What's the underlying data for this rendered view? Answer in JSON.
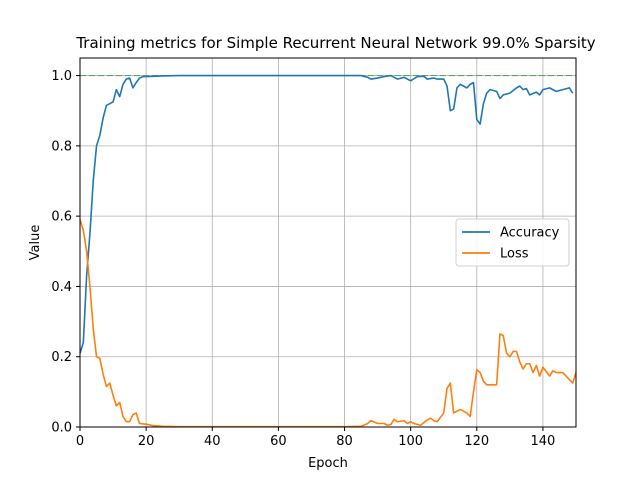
{
  "chart_data": {
    "type": "line",
    "title": "Training metrics for Simple Recurrent Neural Network 99.0% Sparsity",
    "xlabel": "Epoch",
    "ylabel": "Value",
    "xlim": [
      0,
      150
    ],
    "ylim": [
      0,
      1.05
    ],
    "xticks": [
      0,
      20,
      40,
      60,
      80,
      100,
      120,
      140
    ],
    "yticks": [
      0.0,
      0.2,
      0.4,
      0.6,
      0.8,
      1.0
    ],
    "xtick_labels": [
      "0",
      "20",
      "40",
      "60",
      "80",
      "100",
      "120",
      "140"
    ],
    "ytick_labels": [
      "0.0",
      "0.2",
      "0.4",
      "0.6",
      "0.8",
      "1.0"
    ],
    "grid": true,
    "legend_position": "center-right",
    "reference_line": {
      "y": 1.0,
      "style": "dashed",
      "color": "#2ca02c"
    },
    "series": [
      {
        "name": "Accuracy",
        "color": "#1f77b4",
        "points": [
          [
            0,
            0.21
          ],
          [
            1,
            0.24
          ],
          [
            2,
            0.43
          ],
          [
            3,
            0.55
          ],
          [
            4,
            0.7
          ],
          [
            5,
            0.8
          ],
          [
            6,
            0.83
          ],
          [
            7,
            0.88
          ],
          [
            8,
            0.915
          ],
          [
            9,
            0.92
          ],
          [
            10,
            0.925
          ],
          [
            11,
            0.96
          ],
          [
            12,
            0.94
          ],
          [
            13,
            0.975
          ],
          [
            14,
            0.99
          ],
          [
            15,
            0.993
          ],
          [
            16,
            0.965
          ],
          [
            17,
            0.98
          ],
          [
            18,
            0.993
          ],
          [
            19,
            0.997
          ],
          [
            20,
            0.997
          ],
          [
            25,
            0.999
          ],
          [
            30,
            1.0
          ],
          [
            40,
            1.0
          ],
          [
            50,
            1.0
          ],
          [
            60,
            1.0
          ],
          [
            70,
            1.0
          ],
          [
            80,
            1.0
          ],
          [
            85,
            1.0
          ],
          [
            87,
            0.995
          ],
          [
            88,
            0.99
          ],
          [
            90,
            0.993
          ],
          [
            92,
            0.997
          ],
          [
            94,
            1.0
          ],
          [
            96,
            0.99
          ],
          [
            98,
            0.995
          ],
          [
            100,
            0.985
          ],
          [
            102,
            0.997
          ],
          [
            104,
            0.998
          ],
          [
            105,
            0.99
          ],
          [
            107,
            0.993
          ],
          [
            108,
            0.99
          ],
          [
            110,
            0.99
          ],
          [
            111,
            0.97
          ],
          [
            112,
            0.9
          ],
          [
            113,
            0.905
          ],
          [
            114,
            0.965
          ],
          [
            115,
            0.975
          ],
          [
            117,
            0.965
          ],
          [
            118,
            0.975
          ],
          [
            119,
            0.98
          ],
          [
            120,
            0.875
          ],
          [
            121,
            0.862
          ],
          [
            122,
            0.92
          ],
          [
            123,
            0.95
          ],
          [
            124,
            0.96
          ],
          [
            126,
            0.955
          ],
          [
            127,
            0.935
          ],
          [
            128,
            0.945
          ],
          [
            130,
            0.95
          ],
          [
            132,
            0.965
          ],
          [
            133,
            0.97
          ],
          [
            134,
            0.96
          ],
          [
            135,
            0.963
          ],
          [
            136,
            0.945
          ],
          [
            138,
            0.953
          ],
          [
            139,
            0.945
          ],
          [
            140,
            0.96
          ],
          [
            142,
            0.965
          ],
          [
            144,
            0.955
          ],
          [
            146,
            0.96
          ],
          [
            148,
            0.965
          ],
          [
            149,
            0.95
          ]
        ]
      },
      {
        "name": "Loss",
        "color": "#ff7f0e",
        "points": [
          [
            0,
            0.59
          ],
          [
            1,
            0.56
          ],
          [
            2,
            0.5
          ],
          [
            3,
            0.4
          ],
          [
            4,
            0.28
          ],
          [
            5,
            0.2
          ],
          [
            6,
            0.195
          ],
          [
            7,
            0.15
          ],
          [
            8,
            0.115
          ],
          [
            9,
            0.125
          ],
          [
            10,
            0.09
          ],
          [
            11,
            0.06
          ],
          [
            12,
            0.07
          ],
          [
            13,
            0.03
          ],
          [
            14,
            0.015
          ],
          [
            15,
            0.015
          ],
          [
            16,
            0.035
          ],
          [
            17,
            0.04
          ],
          [
            18,
            0.01
          ],
          [
            20,
            0.008
          ],
          [
            22,
            0.004
          ],
          [
            25,
            0.002
          ],
          [
            30,
            0.001
          ],
          [
            40,
            0.001
          ],
          [
            60,
            0.001
          ],
          [
            80,
            0.001
          ],
          [
            85,
            0.002
          ],
          [
            87,
            0.01
          ],
          [
            88,
            0.018
          ],
          [
            90,
            0.01
          ],
          [
            92,
            0.01
          ],
          [
            93,
            0.005
          ],
          [
            94,
            0.007
          ],
          [
            95,
            0.022
          ],
          [
            96,
            0.015
          ],
          [
            98,
            0.018
          ],
          [
            99,
            0.01
          ],
          [
            100,
            0.015
          ],
          [
            101,
            0.01
          ],
          [
            103,
            0.005
          ],
          [
            105,
            0.02
          ],
          [
            106,
            0.025
          ],
          [
            107,
            0.018
          ],
          [
            108,
            0.015
          ],
          [
            110,
            0.04
          ],
          [
            111,
            0.11
          ],
          [
            112,
            0.125
          ],
          [
            113,
            0.04
          ],
          [
            114,
            0.045
          ],
          [
            115,
            0.05
          ],
          [
            117,
            0.04
          ],
          [
            118,
            0.03
          ],
          [
            119,
            0.1
          ],
          [
            120,
            0.163
          ],
          [
            121,
            0.155
          ],
          [
            122,
            0.13
          ],
          [
            123,
            0.12
          ],
          [
            125,
            0.12
          ],
          [
            126,
            0.12
          ],
          [
            127,
            0.265
          ],
          [
            128,
            0.26
          ],
          [
            129,
            0.21
          ],
          [
            130,
            0.2
          ],
          [
            131,
            0.215
          ],
          [
            132,
            0.215
          ],
          [
            133,
            0.185
          ],
          [
            134,
            0.165
          ],
          [
            135,
            0.18
          ],
          [
            136,
            0.18
          ],
          [
            137,
            0.155
          ],
          [
            138,
            0.175
          ],
          [
            139,
            0.145
          ],
          [
            140,
            0.17
          ],
          [
            142,
            0.145
          ],
          [
            143,
            0.16
          ],
          [
            144,
            0.155
          ],
          [
            146,
            0.155
          ],
          [
            148,
            0.135
          ],
          [
            149,
            0.125
          ],
          [
            150,
            0.155
          ]
        ]
      }
    ]
  }
}
